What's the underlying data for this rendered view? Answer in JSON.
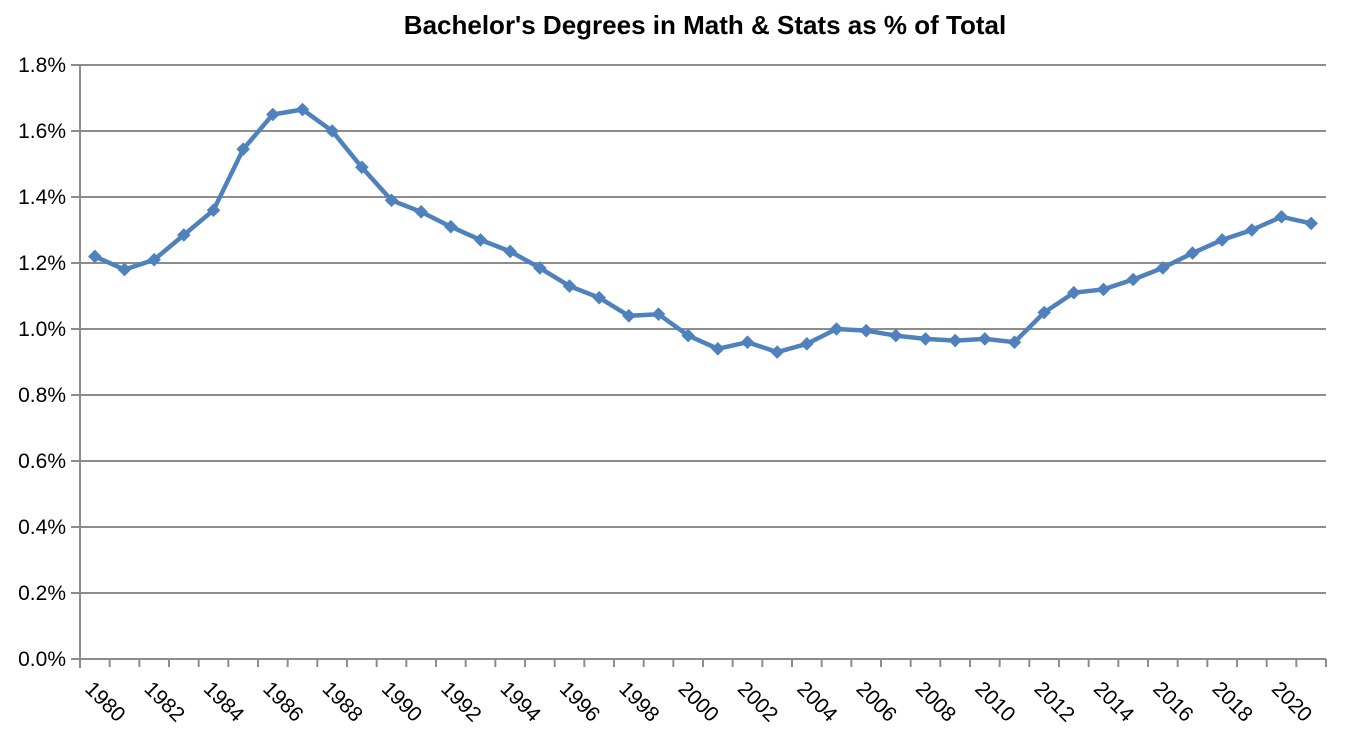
{
  "page": {
    "background_color": "#ffffff"
  },
  "chart_data": {
    "type": "line",
    "title": "Bachelor's Degrees in Math & Stats as % of Total",
    "xlabel": "",
    "ylabel": "",
    "legend": "none",
    "grid": "horizontal",
    "marker": "diamond",
    "ylim": [
      0,
      1.8
    ],
    "y_tick_step": 0.2,
    "y_tick_labels": [
      "0.0%",
      "0.2%",
      "0.4%",
      "0.6%",
      "0.8%",
      "1.0%",
      "1.2%",
      "1.4%",
      "1.6%",
      "1.8%"
    ],
    "x": [
      1980,
      1981,
      1982,
      1983,
      1984,
      1985,
      1986,
      1987,
      1988,
      1989,
      1990,
      1991,
      1992,
      1993,
      1994,
      1995,
      1996,
      1997,
      1998,
      1999,
      2000,
      2001,
      2002,
      2003,
      2004,
      2005,
      2006,
      2007,
      2008,
      2009,
      2010,
      2011,
      2012,
      2013,
      2014,
      2015,
      2016,
      2017,
      2018,
      2019,
      2020,
      2021
    ],
    "x_tick_labels": [
      "1980",
      "1982",
      "1984",
      "1986",
      "1988",
      "1990",
      "1992",
      "1994",
      "1996",
      "1998",
      "2000",
      "2002",
      "2004",
      "2006",
      "2008",
      "2010",
      "2012",
      "2014",
      "2016",
      "2018",
      "2020"
    ],
    "series": [
      {
        "name": "Bachelor's degrees in Math & Stats as % of total",
        "values": [
          1.22,
          1.18,
          1.21,
          1.285,
          1.36,
          1.545,
          1.65,
          1.665,
          1.6,
          1.49,
          1.39,
          1.355,
          1.31,
          1.27,
          1.235,
          1.185,
          1.13,
          1.095,
          1.04,
          1.045,
          0.98,
          0.94,
          0.96,
          0.93,
          0.955,
          1.0,
          0.995,
          0.98,
          0.97,
          0.965,
          0.97,
          0.96,
          1.05,
          1.11,
          1.12,
          1.15,
          1.185,
          1.23,
          1.27,
          1.3,
          1.34,
          1.32
        ]
      }
    ],
    "colors": {
      "series": "#4F81BD",
      "gridline": "#8C8C8C",
      "axis": "#8C8C8C",
      "text": "#000000",
      "background": "#FFFFFF"
    }
  }
}
